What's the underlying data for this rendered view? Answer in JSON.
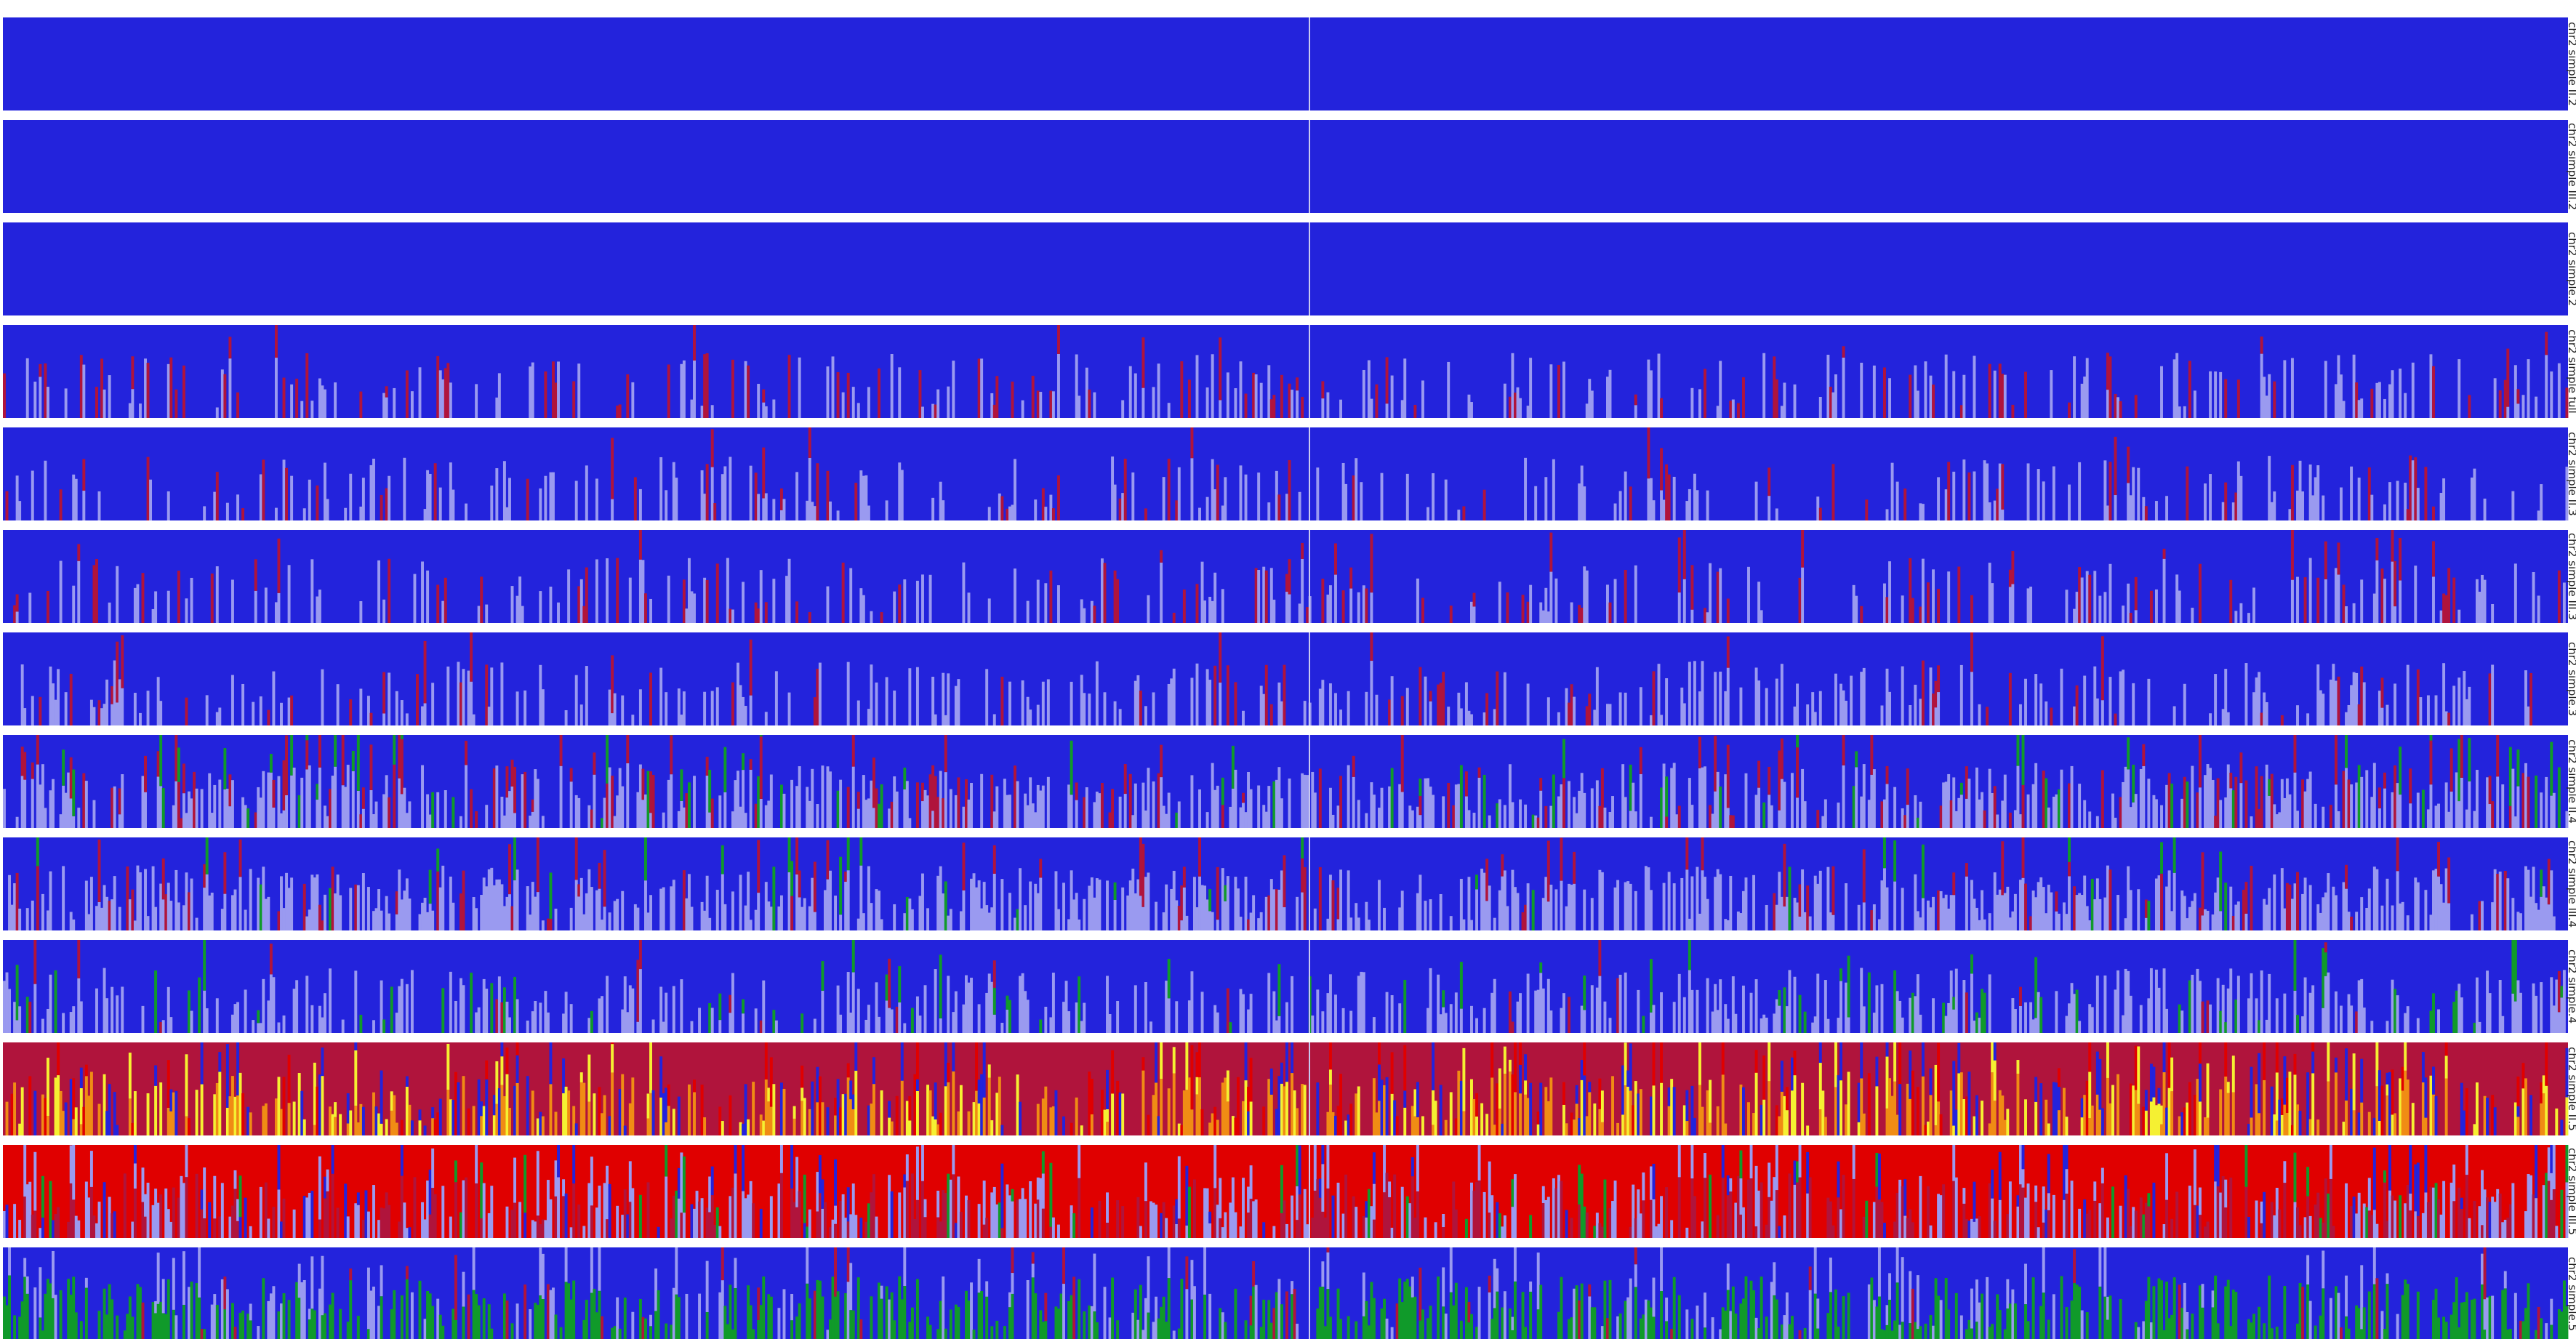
{
  "chart_data": {
    "type": "heatmap",
    "title": "",
    "xlabel": "",
    "ylabel": "",
    "grid": false,
    "legend": "none",
    "sample_count": 1000,
    "palette": {
      "blue": "#2323dc",
      "lightblue": "#9a9af0",
      "darkred": "#b0143c",
      "red": "#e00000",
      "green": "#109a2a",
      "orange": "#f08c14",
      "yellow": "#f5f032",
      "divider": "#c8c8f0"
    },
    "rows": [
      {
        "label1": "chr2 simple II.2",
        "label2": "K=2",
        "base": "blue",
        "mix": []
      },
      {
        "label1": "chr2 simple III.2",
        "label2": "K=2",
        "base": "blue",
        "mix": []
      },
      {
        "label1": "chr2 simple.2",
        "label2": "K=2",
        "base": "blue",
        "mix": []
      },
      {
        "label1": "chr2 simple full",
        "label2": "K=3",
        "base": "blue",
        "mix": [
          [
            "lightblue",
            0.12
          ],
          [
            "darkred",
            0.07
          ]
        ]
      },
      {
        "label1": "chr2 simple II.3",
        "label2": "K=3",
        "base": "blue",
        "mix": [
          [
            "lightblue",
            0.14
          ],
          [
            "darkred",
            0.05
          ]
        ]
      },
      {
        "label1": "chr2 simple III.3",
        "label2": "K=3",
        "base": "blue",
        "mix": [
          [
            "lightblue",
            0.13
          ],
          [
            "darkred",
            0.07
          ]
        ]
      },
      {
        "label1": "chr2 simple.3",
        "label2": "K=3",
        "base": "blue",
        "mix": [
          [
            "lightblue",
            0.18
          ],
          [
            "darkred",
            0.04
          ]
        ]
      },
      {
        "label1": "chr2 simple II.4",
        "label2": "K=4",
        "base": "blue",
        "mix": [
          [
            "lightblue",
            0.3
          ],
          [
            "darkred",
            0.1
          ],
          [
            "green",
            0.05
          ]
        ]
      },
      {
        "label1": "chr2 simple III.4",
        "label2": "K=4",
        "base": "blue",
        "mix": [
          [
            "lightblue",
            0.35
          ],
          [
            "darkred",
            0.06
          ],
          [
            "green",
            0.02
          ]
        ]
      },
      {
        "label1": "chr2 simple.4",
        "label2": "K=4",
        "base": "blue",
        "mix": [
          [
            "lightblue",
            0.25
          ],
          [
            "green",
            0.05
          ],
          [
            "darkred",
            0.02
          ]
        ]
      },
      {
        "label1": "chr2 simple II.5",
        "label2": "K=5",
        "base": "darkred",
        "mix": [
          [
            "orange",
            0.18
          ],
          [
            "yellow",
            0.14
          ],
          [
            "blue",
            0.12
          ],
          [
            "red",
            0.08
          ]
        ]
      },
      {
        "label1": "chr2 simple III.5",
        "label2": "K=5",
        "base": "red",
        "mix": [
          [
            "darkred",
            0.18
          ],
          [
            "lightblue",
            0.22
          ],
          [
            "blue",
            0.06
          ],
          [
            "green",
            0.04
          ]
        ]
      },
      {
        "label1": "chr2 simple.5",
        "label2": "K=5",
        "base": "blue",
        "mix": [
          [
            "green",
            0.3
          ],
          [
            "lightblue",
            0.12
          ],
          [
            "darkred",
            0.03
          ]
        ]
      }
    ]
  }
}
